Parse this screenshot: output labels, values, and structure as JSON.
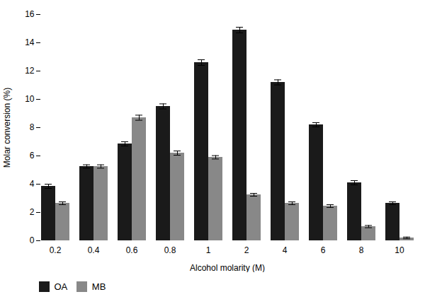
{
  "chart_data": {
    "type": "bar",
    "xlabel": "Alcohol molarity (M)",
    "ylabel": "Molar conversion (%)",
    "categories": [
      "0.2",
      "0.4",
      "0.6",
      "0.8",
      "1",
      "2",
      "4",
      "6",
      "8",
      "10"
    ],
    "series": [
      {
        "name": "OA",
        "color": "#1a1a1a",
        "values": [
          3.85,
          5.25,
          6.85,
          9.5,
          12.6,
          14.9,
          11.2,
          8.2,
          4.1,
          2.65
        ],
        "errors": [
          0.15,
          0.12,
          0.15,
          0.18,
          0.2,
          0.2,
          0.18,
          0.15,
          0.15,
          0.1
        ]
      },
      {
        "name": "MB",
        "color": "#888888",
        "values": [
          2.65,
          5.25,
          8.7,
          6.2,
          5.9,
          3.25,
          2.65,
          2.45,
          1.0,
          0.2
        ],
        "errors": [
          0.1,
          0.12,
          0.18,
          0.15,
          0.12,
          0.1,
          0.1,
          0.1,
          0.08,
          0.06
        ]
      }
    ],
    "ylim": [
      0,
      16
    ],
    "yticks": [
      0,
      2,
      4,
      6,
      8,
      10,
      12,
      14,
      16
    ],
    "grid": false,
    "legend": "bottom"
  }
}
